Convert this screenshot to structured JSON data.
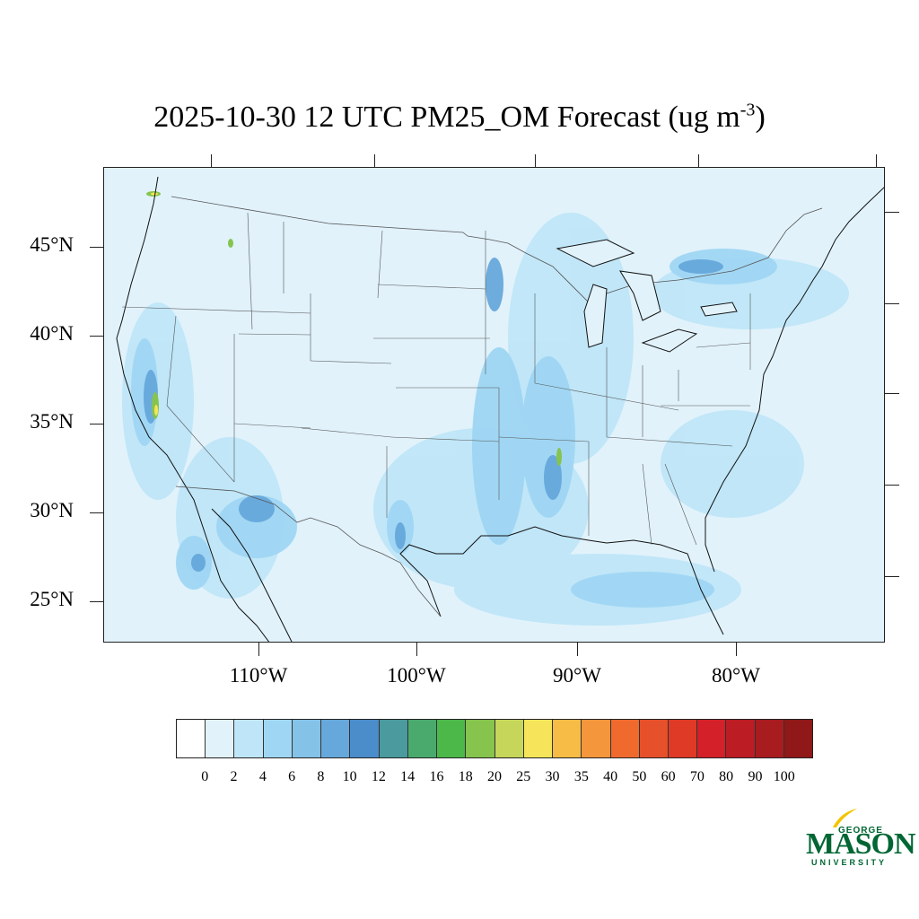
{
  "title": {
    "text": "2025-10-30 12 UTC PM25_OM Forecast (ug m",
    "exponent": "-3",
    "close": ")"
  },
  "map": {
    "background_color": "#e1f2fb",
    "lat_labels": [
      "45°N",
      "40°N",
      "35°N",
      "30°N",
      "25°N"
    ],
    "lon_labels": [
      "110°W",
      "100°W",
      "90°W",
      "80°W"
    ]
  },
  "colorbar": {
    "colors": [
      "#ffffff",
      "#e1f2fb",
      "#bfe6f8",
      "#9fd6f3",
      "#84c2e8",
      "#66a8db",
      "#4b8ccb",
      "#4a9a9e",
      "#4aaa6e",
      "#4cb84a",
      "#86c44e",
      "#c6d65a",
      "#f6e55a",
      "#f6bc46",
      "#f4963c",
      "#f06a2e",
      "#e6502a",
      "#de3a26",
      "#d42028",
      "#bc1c24",
      "#a81c20",
      "#901818"
    ],
    "labels": [
      "0",
      "2",
      "4",
      "6",
      "8",
      "10",
      "12",
      "14",
      "16",
      "18",
      "20",
      "25",
      "30",
      "35",
      "40",
      "50",
      "60",
      "70",
      "80",
      "90",
      "100"
    ]
  },
  "logo": {
    "top": "GEORGE",
    "main": "MASON",
    "bottom": "UNIVERSITY",
    "color": "#006633"
  }
}
